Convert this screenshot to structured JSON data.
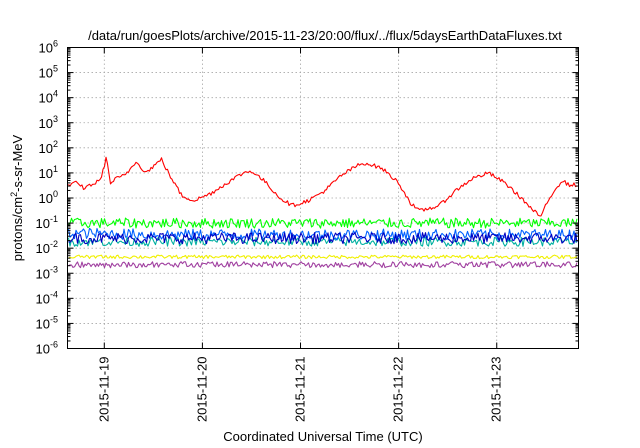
{
  "chart_data": {
    "type": "line",
    "title": "/data/run/goesPlots/archive/2015-11-23/20:00/flux/../flux/5daysEarthDataFluxes.txt",
    "xlabel": "Coordinated Universal Time (UTC)",
    "ylabel": "protons/cm2-s-sr-MeV",
    "ylabel_parts": {
      "before": "protons/cm",
      "sup": "2",
      "after": "-s-sr-MeV"
    },
    "x_scale": "time",
    "xlim": [
      "2015-11-18T15:00",
      "2015-11-23T20:00"
    ],
    "y_scale": "log",
    "ylim": [
      1e-06,
      1000000.0
    ],
    "grid": true,
    "x_ticks": [
      {
        "value": "2015-11-19",
        "label": "2015-11-19"
      },
      {
        "value": "2015-11-20",
        "label": "2015-11-20"
      },
      {
        "value": "2015-11-21",
        "label": "2015-11-21"
      },
      {
        "value": "2015-11-22",
        "label": "2015-11-22"
      },
      {
        "value": "2015-11-23",
        "label": "2015-11-23"
      }
    ],
    "y_ticks": [
      {
        "value": 1e-06,
        "base": "10",
        "exp": "-6"
      },
      {
        "value": 1e-05,
        "base": "10",
        "exp": "-5"
      },
      {
        "value": 0.0001,
        "base": "10",
        "exp": "-4"
      },
      {
        "value": 0.001,
        "base": "10",
        "exp": "-3"
      },
      {
        "value": 0.01,
        "base": "10",
        "exp": "-2"
      },
      {
        "value": 0.1,
        "base": "10",
        "exp": "-1"
      },
      {
        "value": 1,
        "base": "10",
        "exp": "0"
      },
      {
        "value": 10,
        "base": "10",
        "exp": "1"
      },
      {
        "value": 100,
        "base": "10",
        "exp": "2"
      },
      {
        "value": 1000,
        "base": "10",
        "exp": "3"
      },
      {
        "value": 10000,
        "base": "10",
        "exp": "4"
      },
      {
        "value": 100000,
        "base": "10",
        "exp": "5"
      },
      {
        "value": 1000000,
        "base": "10",
        "exp": "6"
      }
    ],
    "series": [
      {
        "color": "#a040a0",
        "noise": 0.12,
        "points": [
          [
            "2015-11-18T15:00",
            0.0022
          ],
          [
            "2015-11-19T12:00",
            0.0022
          ],
          [
            "2015-11-20T12:00",
            0.0022
          ],
          [
            "2015-11-21T12:00",
            0.0022
          ],
          [
            "2015-11-22T12:00",
            0.0022
          ],
          [
            "2015-11-23T20:00",
            0.0022
          ]
        ]
      },
      {
        "color": "#f0f000",
        "noise": 0.07,
        "points": [
          [
            "2015-11-18T15:00",
            0.0045
          ],
          [
            "2015-11-19T12:00",
            0.0045
          ],
          [
            "2015-11-20T12:00",
            0.0045
          ],
          [
            "2015-11-21T12:00",
            0.0045
          ],
          [
            "2015-11-22T12:00",
            0.0045
          ],
          [
            "2015-11-23T20:00",
            0.0045
          ]
        ]
      },
      {
        "color": "#00b0a0",
        "noise": 0.18,
        "points": [
          [
            "2015-11-18T15:00",
            0.018
          ],
          [
            "2015-11-19T12:00",
            0.018
          ],
          [
            "2015-11-20T12:00",
            0.018
          ],
          [
            "2015-11-21T12:00",
            0.018
          ],
          [
            "2015-11-22T12:00",
            0.018
          ],
          [
            "2015-11-23T20:00",
            0.018
          ]
        ]
      },
      {
        "color": "#00ff00",
        "noise": 0.2,
        "points": [
          [
            "2015-11-18T15:00",
            0.1
          ],
          [
            "2015-11-19T12:00",
            0.1
          ],
          [
            "2015-11-20T12:00",
            0.1
          ],
          [
            "2015-11-21T12:00",
            0.1
          ],
          [
            "2015-11-22T12:00",
            0.1
          ],
          [
            "2015-11-23T20:00",
            0.1
          ]
        ]
      },
      {
        "color": "#0060ff",
        "noise": 0.22,
        "points": [
          [
            "2015-11-18T15:00",
            0.04
          ],
          [
            "2015-11-19T12:00",
            0.035
          ],
          [
            "2015-11-20T12:00",
            0.035
          ],
          [
            "2015-11-21T12:00",
            0.035
          ],
          [
            "2015-11-22T12:00",
            0.035
          ],
          [
            "2015-11-23T20:00",
            0.035
          ]
        ]
      },
      {
        "color": "#0000c0",
        "noise": 0.22,
        "points": [
          [
            "2015-11-18T15:00",
            0.025
          ],
          [
            "2015-11-19T12:00",
            0.025
          ],
          [
            "2015-11-20T12:00",
            0.025
          ],
          [
            "2015-11-21T12:00",
            0.025
          ],
          [
            "2015-11-22T12:00",
            0.025
          ],
          [
            "2015-11-23T20:00",
            0.025
          ]
        ]
      },
      {
        "color": "#ff0000",
        "noise": 0.08,
        "points": [
          [
            "2015-11-18T15:00",
            3
          ],
          [
            "2015-11-18T17:00",
            4
          ],
          [
            "2015-11-18T19:00",
            2.5
          ],
          [
            "2015-11-18T21:00",
            3.5
          ],
          [
            "2015-11-18T23:00",
            5
          ],
          [
            "2015-11-19T00:30",
            40
          ],
          [
            "2015-11-19T01:30",
            4
          ],
          [
            "2015-11-19T03:00",
            6
          ],
          [
            "2015-11-19T05:00",
            8
          ],
          [
            "2015-11-19T08:00",
            30
          ],
          [
            "2015-11-19T10:00",
            10
          ],
          [
            "2015-11-19T13:00",
            25
          ],
          [
            "2015-11-19T14:00",
            35
          ],
          [
            "2015-11-19T16:00",
            8
          ],
          [
            "2015-11-19T19:00",
            1.2
          ],
          [
            "2015-11-19T22:00",
            0.8
          ],
          [
            "2015-11-20T02:00",
            1.5
          ],
          [
            "2015-11-20T06:00",
            4
          ],
          [
            "2015-11-20T10:00",
            10
          ],
          [
            "2015-11-20T12:00",
            12
          ],
          [
            "2015-11-20T15:00",
            5
          ],
          [
            "2015-11-20T19:00",
            1
          ],
          [
            "2015-11-20T22:00",
            0.5
          ],
          [
            "2015-11-21T02:00",
            0.8
          ],
          [
            "2015-11-21T06:00",
            2
          ],
          [
            "2015-11-21T10:00",
            8
          ],
          [
            "2015-11-21T14:00",
            20
          ],
          [
            "2015-11-21T16:00",
            25
          ],
          [
            "2015-11-21T20:00",
            15
          ],
          [
            "2015-11-22T00:00",
            4
          ],
          [
            "2015-11-22T03:00",
            0.6
          ],
          [
            "2015-11-22T05:00",
            0.3
          ],
          [
            "2015-11-22T10:00",
            0.5
          ],
          [
            "2015-11-22T14:00",
            2
          ],
          [
            "2015-11-22T18:00",
            6
          ],
          [
            "2015-11-22T22:00",
            10
          ],
          [
            "2015-11-23T02:00",
            4
          ],
          [
            "2015-11-23T06:00",
            1
          ],
          [
            "2015-11-23T09:00",
            0.3
          ],
          [
            "2015-11-23T11:00",
            0.18
          ],
          [
            "2015-11-23T12:00",
            0.5
          ],
          [
            "2015-11-23T14:00",
            2
          ],
          [
            "2015-11-23T16:00",
            5
          ],
          [
            "2015-11-23T18:00",
            3
          ],
          [
            "2015-11-23T19:00",
            4
          ],
          [
            "2015-11-23T20:00",
            2
          ]
        ]
      }
    ]
  }
}
